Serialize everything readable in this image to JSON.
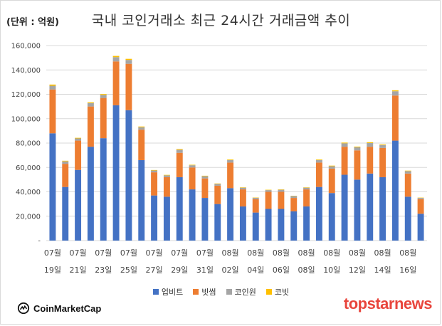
{
  "header": {
    "unit_label": "(단위 : 억원)",
    "title": "국내 코인거래소 최근 24시간 거래금액 추이"
  },
  "logos": {
    "coinmarketcap": "CoinMarketCap",
    "brand_part1": "topstar",
    "brand_part2": "news"
  },
  "colors": {
    "upbit": "#4472c4",
    "bithumb": "#ed7d31",
    "coinone": "#a5a5a5",
    "korbit": "#ffc000",
    "accent": "#e8453c"
  },
  "chart_data": {
    "type": "bar",
    "stacked": true,
    "ylim": [
      0,
      160000
    ],
    "ytick_labels": [
      "-",
      "20,000",
      "40,000",
      "60,000",
      "80,000",
      "100,000",
      "120,000",
      "140,000",
      "160,000"
    ],
    "grid": true,
    "legend_position": "bottom",
    "category_labels": [
      [
        "07월",
        "19일"
      ],
      [
        "07월",
        "21일"
      ],
      [
        "07월",
        "23일"
      ],
      [
        "07월",
        "25일"
      ],
      [
        "07월",
        "27일"
      ],
      [
        "07월",
        "29일"
      ],
      [
        "07월",
        "31일"
      ],
      [
        "08월",
        "02일"
      ],
      [
        "08월",
        "04일"
      ],
      [
        "08월",
        "06일"
      ],
      [
        "08월",
        "08일"
      ],
      [
        "08월",
        "10일"
      ],
      [
        "08월",
        "12일"
      ],
      [
        "08월",
        "14일"
      ],
      [
        "08월",
        "16일"
      ]
    ],
    "series": [
      {
        "name": "업비트",
        "values": [
          88000,
          44000,
          58000,
          77000,
          84000,
          111000,
          107000,
          66000,
          37000,
          36000,
          52000,
          42000,
          35000,
          30000,
          43000,
          28000,
          23000,
          26000,
          26000,
          24000,
          28000,
          44000,
          39000,
          54000,
          50000,
          55000,
          52000,
          82000,
          36000,
          22000
        ]
      },
      {
        "name": "빗썸",
        "values": [
          36000,
          19000,
          24000,
          33000,
          33000,
          36000,
          38000,
          25000,
          19000,
          16000,
          20000,
          18000,
          16000,
          15000,
          21000,
          14000,
          11000,
          14000,
          14000,
          11000,
          14000,
          20000,
          20000,
          23000,
          24000,
          22000,
          24000,
          37000,
          19000,
          12000
        ]
      },
      {
        "name": "코인원",
        "values": [
          3000,
          2000,
          1800,
          2800,
          2500,
          3500,
          3200,
          2000,
          1500,
          1500,
          2500,
          1800,
          1800,
          1500,
          2000,
          1400,
          1100,
          1400,
          1700,
          1500,
          1400,
          2000,
          2000,
          2800,
          2500,
          3000,
          2400,
          3500,
          2000,
          1000
        ]
      },
      {
        "name": "코빗",
        "values": [
          1000,
          500,
          500,
          700,
          700,
          1000,
          900,
          600,
          400,
          400,
          600,
          400,
          400,
          350,
          500,
          300,
          250,
          300,
          300,
          250,
          300,
          500,
          500,
          600,
          600,
          700,
          550,
          800,
          400,
          250
        ]
      }
    ]
  }
}
